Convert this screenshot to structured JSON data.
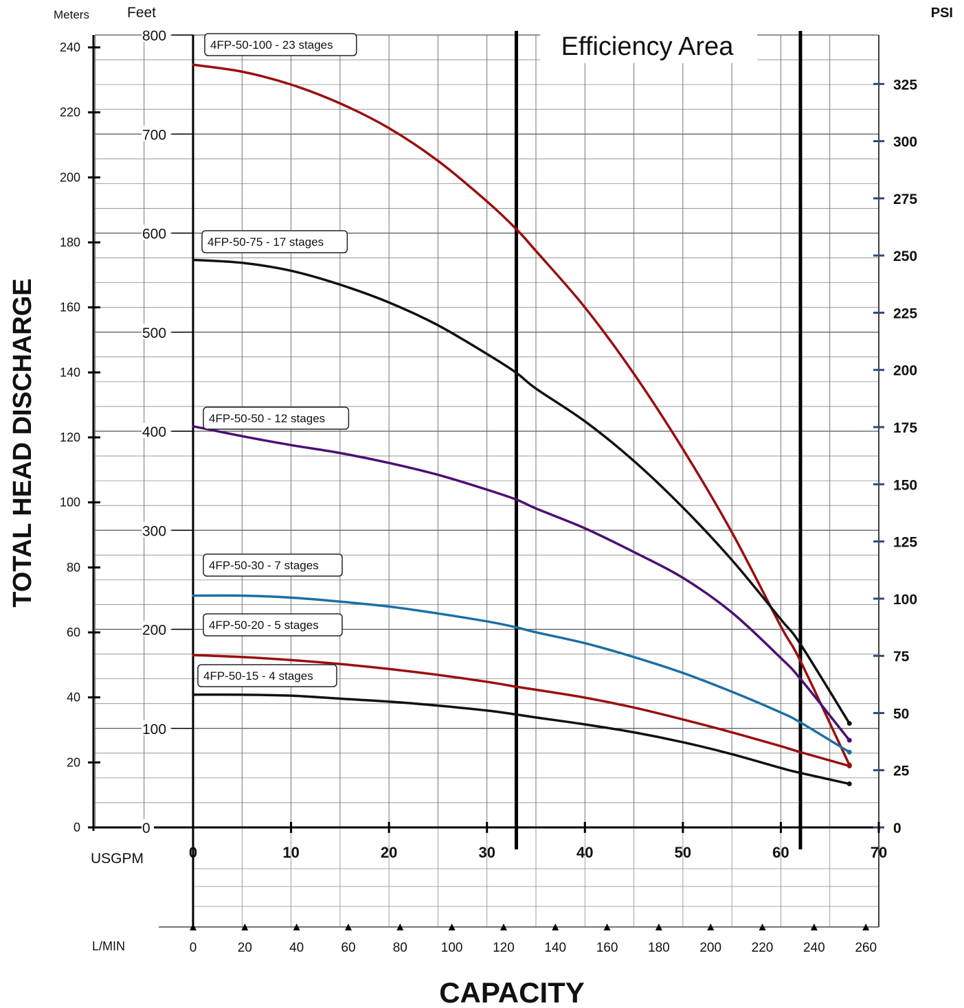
{
  "chart_data": {
    "type": "line",
    "title": "",
    "xlabel": "CAPACITY",
    "ylabel": "TOTAL HEAD DISCHARGE",
    "annotation": "Efficiency Area",
    "grid": true,
    "x_axis": {
      "unit_label": "USGPM",
      "range": [
        0,
        70
      ],
      "ticks": [
        0,
        10,
        20,
        30,
        40,
        50,
        60,
        70
      ]
    },
    "x_axis_secondary": {
      "unit_label": "L/MIN",
      "range": [
        0,
        265
      ],
      "ticks": [
        0,
        20,
        40,
        60,
        80,
        100,
        120,
        140,
        160,
        180,
        200,
        220,
        240,
        260
      ]
    },
    "y_axis_feet": {
      "unit_label": "Feet",
      "range": [
        0,
        800
      ],
      "ticks": [
        0,
        100,
        200,
        300,
        400,
        500,
        600,
        700,
        800
      ]
    },
    "y_axis_meters": {
      "unit_label": "Meters",
      "range": [
        0,
        243.8
      ],
      "ticks": [
        0,
        20,
        40,
        60,
        80,
        100,
        120,
        140,
        160,
        180,
        200,
        220,
        240
      ]
    },
    "y_axis_psi": {
      "unit_label": "PSI",
      "range": [
        0,
        346.4
      ],
      "ticks": [
        0,
        25,
        50,
        75,
        100,
        125,
        150,
        175,
        200,
        225,
        250,
        275,
        300,
        325
      ]
    },
    "efficiency_area": [
      33,
      62
    ],
    "series": [
      {
        "name": "4FP-50-100 - 23 stages",
        "color": "#9a0f0f",
        "x": [
          0,
          5,
          10,
          15,
          20,
          25,
          30,
          33,
          35,
          40,
          45,
          50,
          55,
          60,
          62,
          67
        ],
        "y": [
          770,
          763,
          750,
          731,
          706,
          673,
          632,
          604,
          582,
          525,
          458,
          382,
          298,
          203,
          168,
          63
        ]
      },
      {
        "name": "4FP-50-75 - 17 stages",
        "color": "#111111",
        "x": [
          0,
          5,
          10,
          15,
          20,
          25,
          30,
          33,
          35,
          40,
          45,
          50,
          55,
          60,
          62,
          67
        ],
        "y": [
          573,
          570,
          562,
          548,
          530,
          507,
          478,
          459,
          443,
          410,
          370,
          323,
          270,
          210,
          185,
          105
        ]
      },
      {
        "name": "4FP-50-50 - 12 stages",
        "color": "#4b0f73",
        "x": [
          0,
          5,
          10,
          15,
          20,
          25,
          30,
          33,
          35,
          40,
          45,
          50,
          55,
          60,
          62,
          67
        ],
        "y": [
          405,
          395,
          386,
          378,
          368,
          356,
          341,
          331,
          322,
          302,
          278,
          252,
          217,
          171,
          150,
          88
        ]
      },
      {
        "name": "4FP-50-30 - 7 stages",
        "color": "#1c6fa3",
        "x": [
          0,
          5,
          10,
          15,
          20,
          25,
          30,
          33,
          35,
          40,
          45,
          50,
          55,
          60,
          62,
          67
        ],
        "y": [
          234,
          234,
          232,
          228,
          223,
          216,
          208,
          202,
          197,
          186,
          172,
          156,
          137,
          116,
          106,
          76
        ]
      },
      {
        "name": "4FP-50-20 - 5 stages",
        "color": "#9a0f0f",
        "x": [
          0,
          5,
          10,
          15,
          20,
          25,
          30,
          33,
          35,
          40,
          45,
          50,
          55,
          60,
          62,
          67
        ],
        "y": [
          174,
          172,
          169,
          165,
          160,
          154,
          147,
          142,
          139,
          131,
          121,
          109,
          96,
          82,
          76,
          62
        ]
      },
      {
        "name": "4FP-50-15 - 4 stages",
        "color": "#111111",
        "x": [
          0,
          5,
          10,
          15,
          20,
          25,
          30,
          33,
          35,
          40,
          45,
          50,
          55,
          60,
          62,
          67
        ],
        "y": [
          134,
          134,
          133,
          130,
          127,
          123,
          118,
          114,
          111,
          104,
          96,
          86,
          74,
          60,
          55,
          44
        ]
      }
    ]
  }
}
